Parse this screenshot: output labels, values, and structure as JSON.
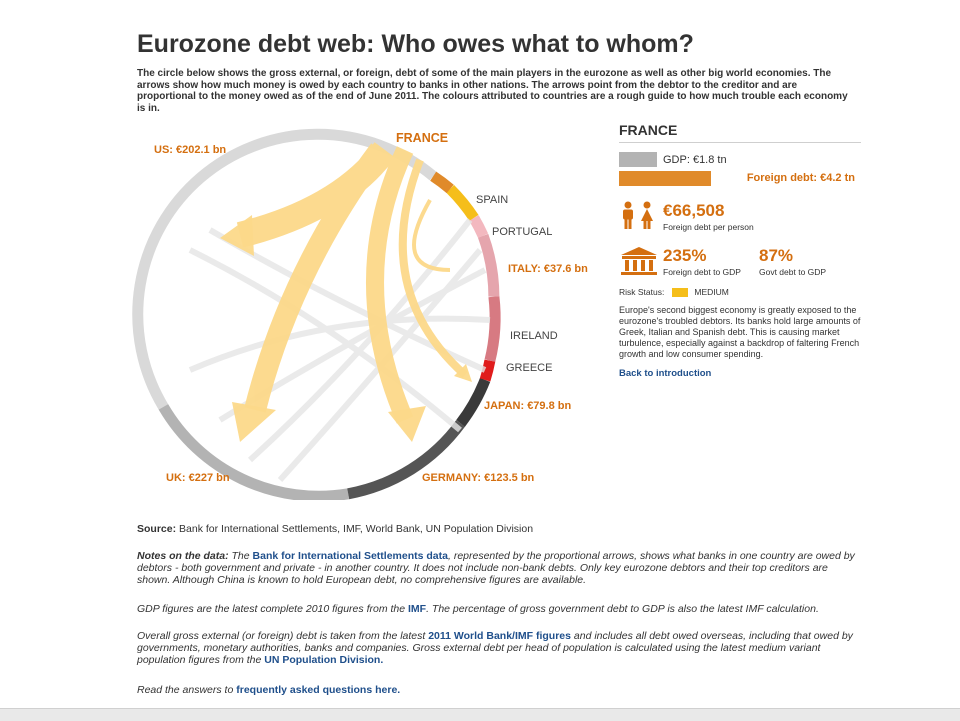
{
  "title": "Eurozone debt web: Who owes what to whom?",
  "intro": "The circle below shows the gross external, or foreign, debt of some of the main players in the eurozone as well as other big world economies. The arrows show how much money is owed by each country to banks in other nations. The arrows point from the debtor to the creditor and are proportional to the money owed as of the end of June 2011. The colours attributed to countries are a rough guide to how much trouble each economy is in.",
  "chart": {
    "countries": [
      {
        "name": "FRANCE",
        "label": "FRANCE",
        "color": "#f5be1a"
      },
      {
        "name": "SPAIN",
        "label": "SPAIN",
        "color": "#f5be1a"
      },
      {
        "name": "PORTUGAL",
        "label": "PORTUGAL",
        "color": "#f3b8bf"
      },
      {
        "name": "ITALY",
        "label": "ITALY: €37.6 bn",
        "color": "#e5a5ad"
      },
      {
        "name": "IRELAND",
        "label": "IRELAND",
        "color": "#d77a82"
      },
      {
        "name": "GREECE",
        "label": "GREECE",
        "color": "#e01c1c"
      },
      {
        "name": "JAPAN",
        "label": "JAPAN: €79.8 bn",
        "color": "#3a3a3a"
      },
      {
        "name": "GERMANY",
        "label": "GERMANY: €123.5 bn",
        "color": "#555555"
      },
      {
        "name": "UK",
        "label": "UK: €227 bn",
        "color": "#b3b3b3"
      },
      {
        "name": "US",
        "label": "US: €202.1 bn",
        "color": "#d9d9d9"
      }
    ],
    "highlight_color": "#e08a2a",
    "arrow_color": "#fcd98a"
  },
  "panel": {
    "country": "FRANCE",
    "gdp": "GDP: €1.8 tn",
    "foreign_debt": "Foreign debt: €4.2 tn",
    "per_person": "€66,508",
    "per_person_label": "Foreign debt per person",
    "debt_to_gdp": "235%",
    "debt_to_gdp_label": "Foreign debt to GDP",
    "govt_debt": "87%",
    "govt_debt_label": "Govt debt to GDP",
    "risk_label": "Risk Status:",
    "risk_value": "MEDIUM",
    "description": "Europe's second biggest economy is greatly exposed to the eurozone's troubled debtors. Its banks hold large amounts of Greek, Italian and Spanish debt. This is causing market turbulence, especially against a backdrop of faltering French growth and low consumer spending.",
    "back_link": "Back to introduction"
  },
  "footer": {
    "source_label": "Source:",
    "source_text": "Bank for International Settlements, IMF, World Bank, UN Population Division",
    "notes_label": "Notes on the data:",
    "notes_1a": "The",
    "notes_1_link": "Bank for International Settlements data",
    "notes_1b": ", represented by the proportional arrows, shows what banks in one country are owed by debtors - both government and private - in another country. It does not include non-bank debts. Only key eurozone debtors and their top creditors are shown. Although China is known to hold European debt, no comprehensive figures are available.",
    "gdp_note_a": "GDP figures are the latest complete 2010 figures from the",
    "gdp_note_link": "IMF",
    "gdp_note_b": ". The percentage of gross government debt to GDP is also the latest IMF calculation.",
    "overall_a": "Overall gross external (or foreign) debt is taken from the latest",
    "overall_link": "2011 World Bank/IMF figures",
    "overall_b": "and includes all debt owed overseas, including that owed by governments, monetary authorities, banks and companies. Gross external debt per head of population is calculated using the latest medium variant population figures from the",
    "overall_link2": "UN Population Division.",
    "read_a": "Read the answers to",
    "read_link": "frequently asked questions here."
  }
}
